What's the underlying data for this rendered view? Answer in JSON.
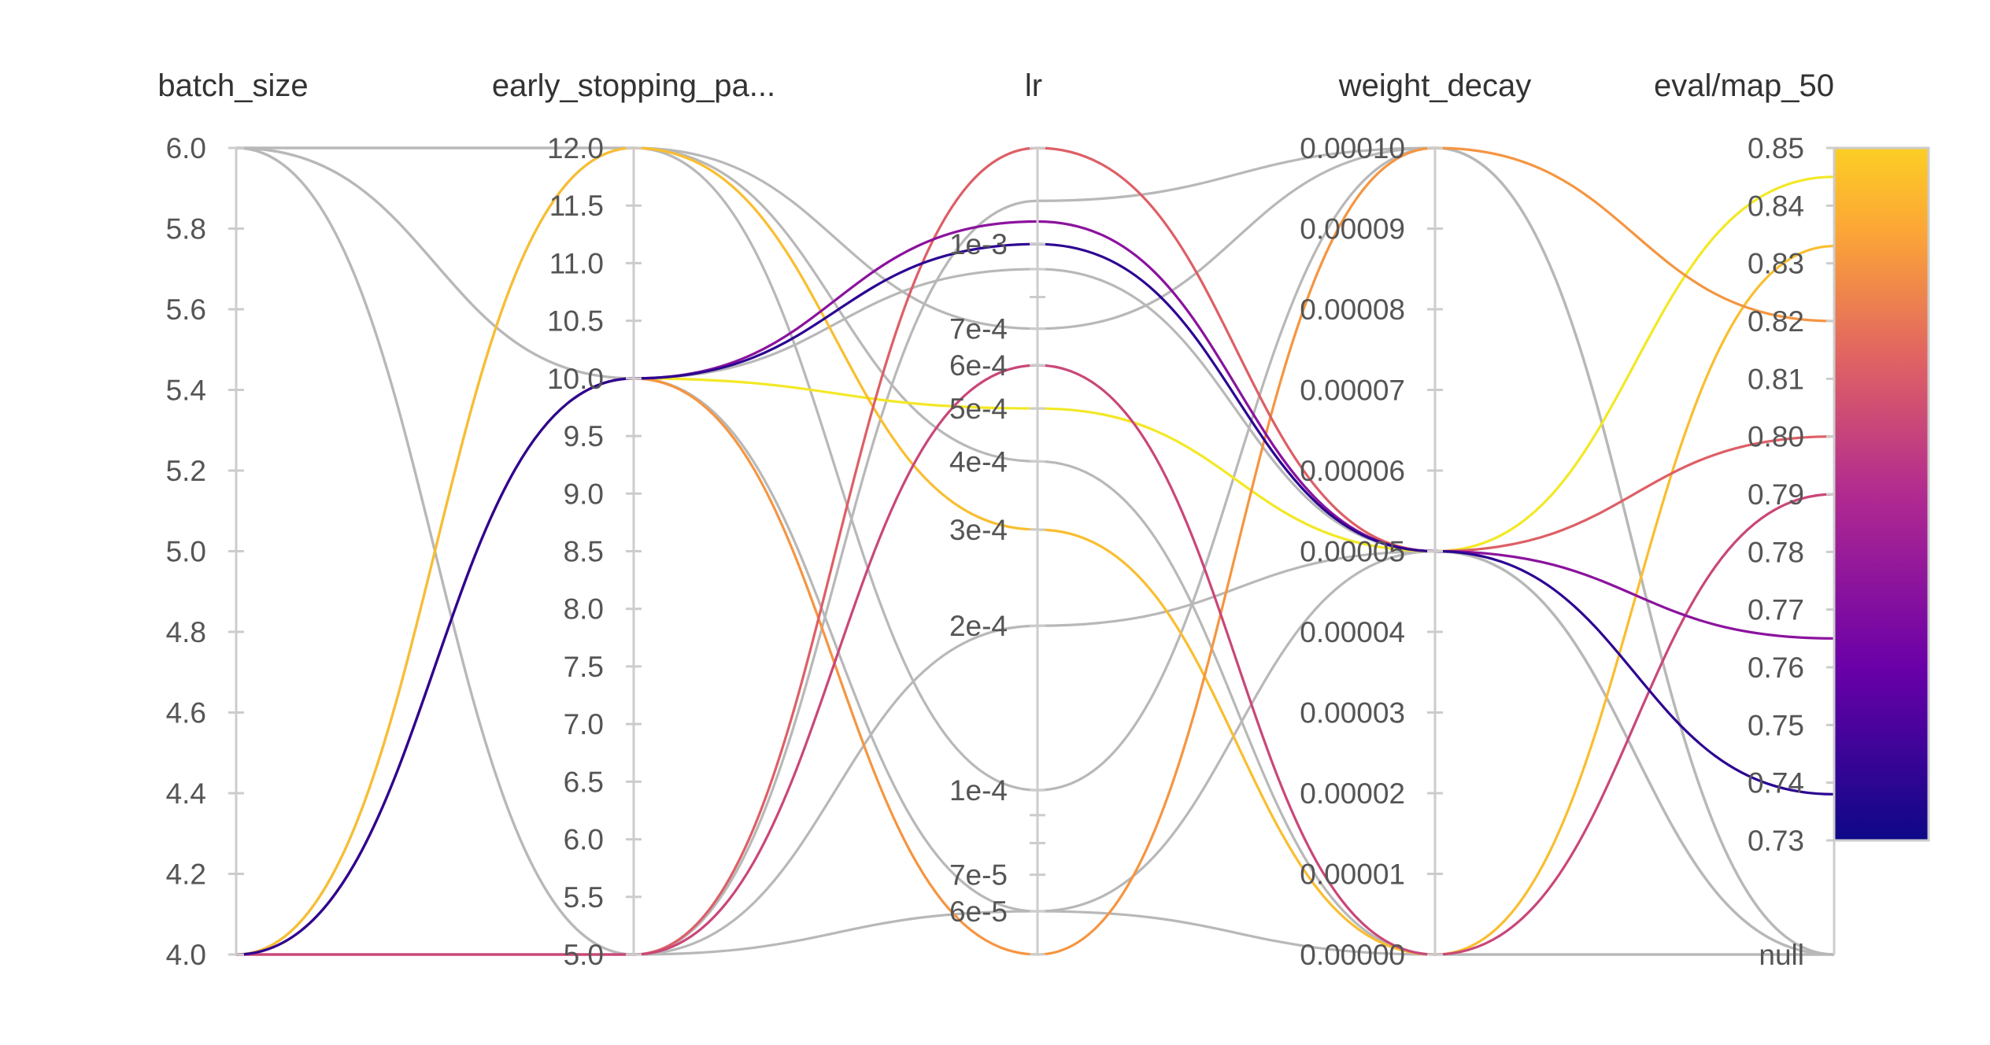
{
  "chart_data": {
    "type": "parallel_coordinates",
    "colors": {
      "neutral": "#b8b8b8",
      "axis": "#cccccc",
      "colorscale": [
        "#0d0887",
        "#6a00a8",
        "#b12a90",
        "#e16462",
        "#fca636",
        "#f0f921"
      ]
    },
    "axes": [
      {
        "key": "batch_size",
        "label": "batch_size",
        "scale": "linear",
        "range": [
          4.0,
          6.0
        ],
        "ticks": [
          {
            "v": 6.0,
            "label": "6.0"
          },
          {
            "v": 5.8,
            "label": "5.8"
          },
          {
            "v": 5.6,
            "label": "5.6"
          },
          {
            "v": 5.4,
            "label": "5.4"
          },
          {
            "v": 5.2,
            "label": "5.2"
          },
          {
            "v": 5.0,
            "label": "5.0"
          },
          {
            "v": 4.8,
            "label": "4.8"
          },
          {
            "v": 4.6,
            "label": "4.6"
          },
          {
            "v": 4.4,
            "label": "4.4"
          },
          {
            "v": 4.2,
            "label": "4.2"
          },
          {
            "v": 4.0,
            "label": "4.0"
          }
        ]
      },
      {
        "key": "early_stopping",
        "label": "early_stopping_pa...",
        "scale": "linear",
        "range": [
          5.0,
          12.0
        ],
        "ticks": [
          {
            "v": 12.0,
            "label": "12.0"
          },
          {
            "v": 11.5,
            "label": "11.5"
          },
          {
            "v": 11.0,
            "label": "11.0"
          },
          {
            "v": 10.5,
            "label": "10.5"
          },
          {
            "v": 10.0,
            "label": "10.0"
          },
          {
            "v": 9.5,
            "label": "9.5"
          },
          {
            "v": 9.0,
            "label": "9.0"
          },
          {
            "v": 8.5,
            "label": "8.5"
          },
          {
            "v": 8.0,
            "label": "8.0"
          },
          {
            "v": 7.5,
            "label": "7.5"
          },
          {
            "v": 7.0,
            "label": "7.0"
          },
          {
            "v": 6.5,
            "label": "6.5"
          },
          {
            "v": 6.0,
            "label": "6.0"
          },
          {
            "v": 5.5,
            "label": "5.5"
          },
          {
            "v": 5.0,
            "label": "5.0"
          }
        ]
      },
      {
        "key": "lr",
        "label": "lr",
        "scale": "log",
        "range": [
          5e-05,
          0.0015
        ],
        "ticks": [
          {
            "v": 0.001,
            "label": "1e-3"
          },
          {
            "v": 0.0007,
            "label": "7e-4"
          },
          {
            "v": 0.0006,
            "label": "6e-4"
          },
          {
            "v": 0.0005,
            "label": "5e-4"
          },
          {
            "v": 0.0004,
            "label": "4e-4"
          },
          {
            "v": 0.0003,
            "label": "3e-4"
          },
          {
            "v": 0.0002,
            "label": "2e-4"
          },
          {
            "v": 0.0001,
            "label": "1e-4"
          },
          {
            "v": 7e-05,
            "label": "7e-5"
          },
          {
            "v": 6e-05,
            "label": "6e-5"
          }
        ],
        "minor_ticks": [
          0.0015,
          0.0009,
          0.0008,
          9e-05,
          8e-05,
          5e-05
        ]
      },
      {
        "key": "weight_decay",
        "label": "weight_decay",
        "scale": "linear",
        "range": [
          0.0,
          0.0001
        ],
        "ticks": [
          {
            "v": 0.0001,
            "label": "0.00010"
          },
          {
            "v": 9e-05,
            "label": "0.00009"
          },
          {
            "v": 8e-05,
            "label": "0.00008"
          },
          {
            "v": 7e-05,
            "label": "0.00007"
          },
          {
            "v": 6e-05,
            "label": "0.00006"
          },
          {
            "v": 5e-05,
            "label": "0.00005"
          },
          {
            "v": 4e-05,
            "label": "0.00004"
          },
          {
            "v": 3e-05,
            "label": "0.00003"
          },
          {
            "v": 2e-05,
            "label": "0.00002"
          },
          {
            "v": 1e-05,
            "label": "0.00001"
          },
          {
            "v": 0.0,
            "label": "0.00000"
          }
        ]
      },
      {
        "key": "eval_map_50",
        "label": "eval/map_50",
        "scale": "linear",
        "range": [
          0.73,
          0.85
        ],
        "null_label": "null",
        "ticks": [
          {
            "v": 0.85,
            "label": "0.85"
          },
          {
            "v": 0.84,
            "label": "0.84"
          },
          {
            "v": 0.83,
            "label": "0.83"
          },
          {
            "v": 0.82,
            "label": "0.82"
          },
          {
            "v": 0.81,
            "label": "0.81"
          },
          {
            "v": 0.8,
            "label": "0.80"
          },
          {
            "v": 0.79,
            "label": "0.79"
          },
          {
            "v": 0.78,
            "label": "0.78"
          },
          {
            "v": 0.77,
            "label": "0.77"
          },
          {
            "v": 0.76,
            "label": "0.76"
          },
          {
            "v": 0.75,
            "label": "0.75"
          },
          {
            "v": 0.74,
            "label": "0.74"
          },
          {
            "v": 0.73,
            "label": "0.73"
          }
        ]
      }
    ],
    "runs": [
      {
        "batch_size": 4,
        "early_stopping": 10,
        "lr": 0.0005,
        "weight_decay": 5e-05,
        "eval_map_50": 0.845
      },
      {
        "batch_size": 4,
        "early_stopping": 12,
        "lr": 0.0003,
        "weight_decay": 0.0,
        "eval_map_50": 0.833
      },
      {
        "batch_size": 4,
        "early_stopping": 10,
        "lr": 5e-05,
        "weight_decay": 0.0001,
        "eval_map_50": 0.82
      },
      {
        "batch_size": 4,
        "early_stopping": 5,
        "lr": 0.0015,
        "weight_decay": 5e-05,
        "eval_map_50": 0.8
      },
      {
        "batch_size": 4,
        "early_stopping": 5,
        "lr": 0.0006,
        "weight_decay": 0.0,
        "eval_map_50": 0.79
      },
      {
        "batch_size": 4,
        "early_stopping": 10,
        "lr": 0.0011,
        "weight_decay": 5e-05,
        "eval_map_50": 0.765
      },
      {
        "batch_size": 4,
        "early_stopping": 10,
        "lr": 0.001,
        "weight_decay": 5e-05,
        "eval_map_50": 0.738
      },
      {
        "batch_size": 6,
        "early_stopping": 5,
        "lr": 0.0012,
        "weight_decay": 0.0001,
        "eval_map_50": null
      },
      {
        "batch_size": 6,
        "early_stopping": 10,
        "lr": 0.0009,
        "weight_decay": 5e-05,
        "eval_map_50": null
      },
      {
        "batch_size": 6,
        "early_stopping": 12,
        "lr": 0.0004,
        "weight_decay": 0.0,
        "eval_map_50": null
      },
      {
        "batch_size": 6,
        "early_stopping": 12,
        "lr": 0.0001,
        "weight_decay": 0.0001,
        "eval_map_50": null
      },
      {
        "batch_size": 6,
        "early_stopping": 10,
        "lr": 6e-05,
        "weight_decay": 5e-05,
        "eval_map_50": null
      },
      {
        "batch_size": 4,
        "early_stopping": 12,
        "lr": 0.0007,
        "weight_decay": 0.0001,
        "eval_map_50": null
      },
      {
        "batch_size": 6,
        "early_stopping": 5,
        "lr": 6e-05,
        "weight_decay": 0.0,
        "eval_map_50": null
      },
      {
        "batch_size": 4,
        "early_stopping": 5,
        "lr": 0.0002,
        "weight_decay": 5e-05,
        "eval_map_50": null
      }
    ]
  }
}
